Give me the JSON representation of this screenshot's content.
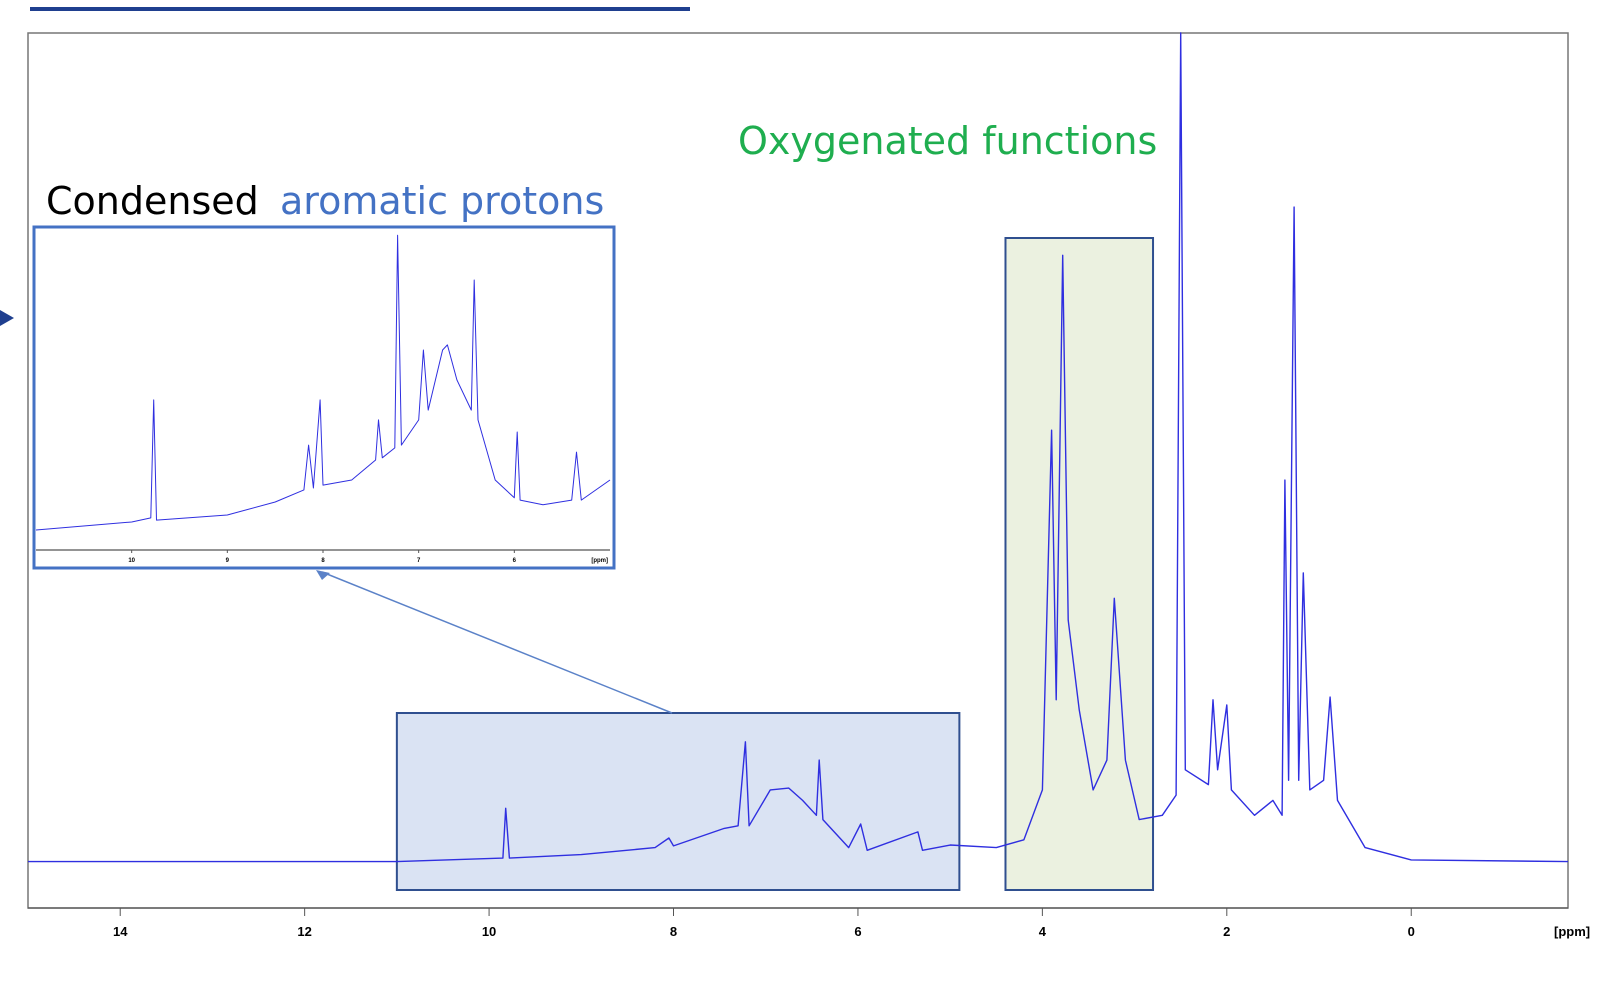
{
  "chart_data": [
    {
      "type": "line",
      "x_label": "[ppm]",
      "color": "#2f2fe0",
      "xlim": [
        15.0,
        -1.7
      ],
      "ylim": [
        0,
        100
      ],
      "xticks": [
        14,
        12,
        10,
        8,
        6,
        4,
        2,
        0
      ],
      "annotations": [
        "Condensed",
        "aromatic protons",
        "Oxygenated functions"
      ],
      "highlights": [
        {
          "from": 11,
          "to": 4.9,
          "color": "#dae3f3"
        },
        {
          "from": 4.4,
          "to": 2.8,
          "color": "#ebf1e0"
        }
      ],
      "x": [
        15.0,
        11,
        9.85,
        9.82,
        9.78,
        9,
        8.2,
        8.05,
        8.0,
        7.45,
        7.3,
        7.22,
        7.18,
        6.95,
        6.75,
        6.6,
        6.45,
        6.42,
        6.38,
        6.1,
        5.97,
        5.9,
        5.35,
        5.3,
        5.0,
        4.5,
        4.2,
        4.0,
        3.9,
        3.85,
        3.78,
        3.72,
        3.6,
        3.45,
        3.3,
        3.22,
        3.1,
        2.95,
        2.7,
        2.55,
        2.5,
        2.45,
        2.2,
        2.15,
        2.1,
        2.0,
        1.95,
        1.7,
        1.5,
        1.4,
        1.37,
        1.33,
        1.27,
        1.22,
        1.17,
        1.1,
        0.95,
        0.88,
        0.8,
        0.5,
        0,
        -1.7
      ],
      "values": [
        5.3,
        5.3,
        5.7,
        11.4,
        5.7,
        6.1,
        6.9,
        8.0,
        7.1,
        9.1,
        9.4,
        19.0,
        9.4,
        13.5,
        13.7,
        12.3,
        10.6,
        16.9,
        10.1,
        6.9,
        9.6,
        6.6,
        8.7,
        6.6,
        7.2,
        6.9,
        7.8,
        13.5,
        54.6,
        23.8,
        74.6,
        32.9,
        22.6,
        13.5,
        16.9,
        35.4,
        16.9,
        10.1,
        10.6,
        12.9,
        100,
        15.8,
        14.1,
        23.8,
        15.8,
        23.2,
        13.5,
        10.6,
        12.3,
        10.6,
        48.9,
        14.6,
        80.1,
        14.6,
        38.3,
        13.5,
        14.6,
        24.1,
        12.3,
        6.9,
        5.5,
        5.3
      ]
    },
    {
      "type": "line",
      "x_label": "[ppm]",
      "color": "#2f2fe0",
      "xlim": [
        11,
        5
      ],
      "ylim": [
        0,
        100
      ],
      "xticks": [
        10,
        9,
        8,
        7,
        6
      ],
      "x": [
        11,
        10,
        9.8,
        9.77,
        9.74,
        9,
        8.5,
        8.2,
        8.15,
        8.1,
        8.03,
        8.0,
        7.7,
        7.45,
        7.42,
        7.38,
        7.25,
        7.22,
        7.18,
        7.0,
        6.95,
        6.9,
        6.75,
        6.7,
        6.6,
        6.45,
        6.42,
        6.38,
        6.2,
        6.0,
        5.97,
        5.94,
        5.7,
        5.4,
        5.35,
        5.3,
        5.0
      ],
      "values": [
        6.3,
        8.8,
        10.1,
        47.2,
        9.4,
        11,
        15.1,
        18.9,
        33,
        19.5,
        47.2,
        20.4,
        22,
        28.3,
        40.9,
        29,
        32.1,
        99,
        33,
        40.9,
        62.9,
        44,
        62.9,
        64.5,
        53.5,
        44,
        84.9,
        40.9,
        22,
        16.4,
        37.1,
        15.7,
        14.2,
        15.7,
        30.8,
        15.7,
        22
      ]
    }
  ]
}
